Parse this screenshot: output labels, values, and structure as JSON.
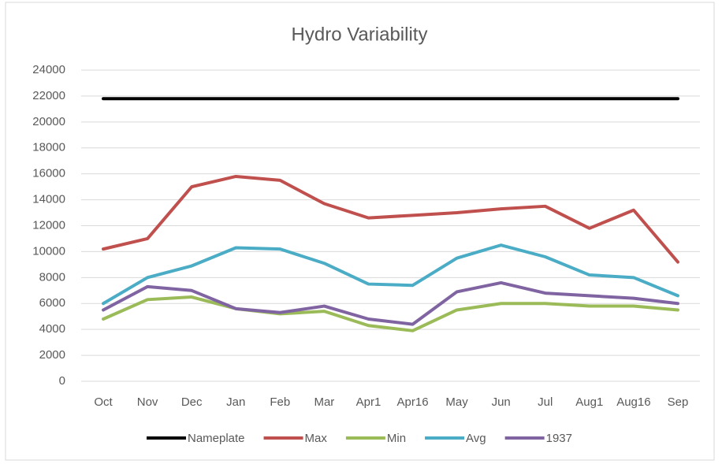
{
  "chart_data": {
    "type": "line",
    "title": "Hydro Variability",
    "categories": [
      "Oct",
      "Nov",
      "Dec",
      "Jan",
      "Feb",
      "Mar",
      "Apr1",
      "Apr16",
      "May",
      "Jun",
      "Jul",
      "Aug1",
      "Aug16",
      "Sep"
    ],
    "series": [
      {
        "name": "Nameplate",
        "color": "#000000",
        "values": [
          21800,
          21800,
          21800,
          21800,
          21800,
          21800,
          21800,
          21800,
          21800,
          21800,
          21800,
          21800,
          21800,
          21800
        ]
      },
      {
        "name": "Max",
        "color": "#c0504d",
        "values": [
          10200,
          11000,
          15000,
          15800,
          15500,
          13700,
          12600,
          12800,
          13000,
          13300,
          13500,
          11800,
          13200,
          9200
        ]
      },
      {
        "name": "Min",
        "color": "#9bbb59",
        "values": [
          4800,
          6300,
          6500,
          5600,
          5200,
          5400,
          4300,
          3900,
          5500,
          6000,
          6000,
          5800,
          5800,
          5500
        ]
      },
      {
        "name": "Avg",
        "color": "#4bacc6",
        "values": [
          6000,
          8000,
          8900,
          10300,
          10200,
          9100,
          7500,
          7400,
          9500,
          10500,
          9600,
          8200,
          8000,
          6600
        ]
      },
      {
        "name": "1937",
        "color": "#8064a2",
        "values": [
          5500,
          7300,
          7000,
          5600,
          5300,
          5800,
          4800,
          4400,
          6900,
          7600,
          6800,
          6600,
          6400,
          6000
        ]
      }
    ],
    "ylim": [
      0,
      24000
    ],
    "yticks": [
      0,
      2000,
      4000,
      6000,
      8000,
      10000,
      12000,
      14000,
      16000,
      18000,
      20000,
      22000,
      24000
    ],
    "grid": true,
    "legend": "bottom"
  }
}
